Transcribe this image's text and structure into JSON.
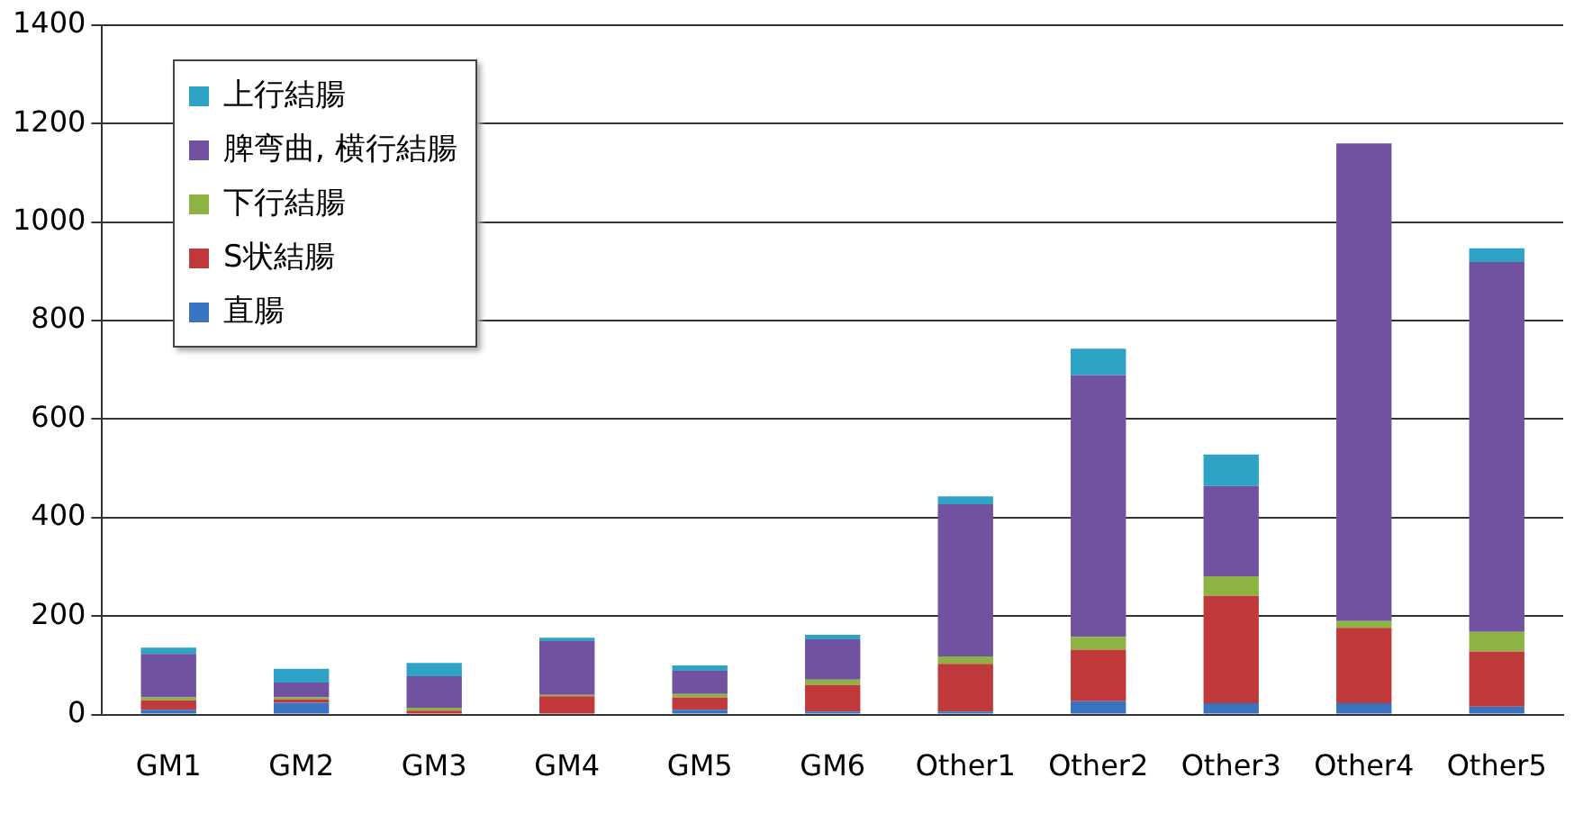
{
  "chart_data": {
    "type": "bar",
    "stacked": true,
    "categories": [
      "GM1",
      "GM2",
      "GM3",
      "GM4",
      "GM5",
      "GM6",
      "Other1",
      "Other2",
      "Other3",
      "Other4",
      "Other5"
    ],
    "series": [
      {
        "name": "直腸",
        "color": "#3a73c0",
        "values": [
          10,
          24,
          null,
          null,
          10,
          6,
          6,
          27,
          23,
          23,
          16
        ]
      },
      {
        "name": "S状結腸",
        "color": "#c0393b",
        "values": [
          19,
          7,
          8,
          37,
          25,
          54,
          97,
          105,
          218,
          153,
          112
        ]
      },
      {
        "name": "下行結腸",
        "color": "#8db443",
        "values": [
          6,
          4,
          6,
          3,
          7,
          11,
          15,
          26,
          40,
          14,
          40
        ]
      },
      {
        "name": "脾弯曲, 横行結腸",
        "color": "#7052a0",
        "values": [
          88,
          30,
          64,
          109,
          47,
          82,
          309,
          531,
          183,
          970,
          751
        ]
      },
      {
        "name": "上行結腸",
        "color": "#2ea3c6",
        "values": [
          13,
          28,
          27,
          7,
          11,
          9,
          16,
          54,
          64,
          0,
          28
        ]
      }
    ],
    "ylim": [
      0,
      1400
    ],
    "yticks": [
      0,
      200,
      400,
      600,
      800,
      1000,
      1200,
      1400
    ],
    "grid": "y",
    "legend": "top left"
  }
}
